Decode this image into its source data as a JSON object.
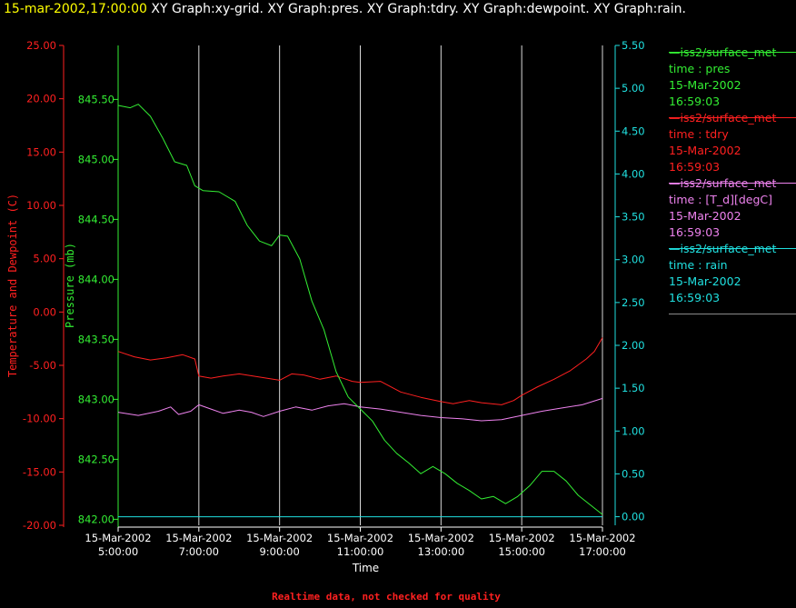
{
  "header": {
    "timestamp": "15-mar-2002,17:00:00",
    "title": " XY Graph:xy-grid.  XY Graph:pres.  XY Graph:tdry.  XY Graph:dewpoint.  XY Graph:rain."
  },
  "colors": {
    "background": "#000000",
    "timestamp": "#ffff00",
    "title": "#ffffff",
    "temperature": "#ff2020",
    "pressure": "#33ee33",
    "dewpoint": "#ee82ee",
    "rain": "#20e0e0",
    "grid": "#ffffff",
    "footer": "#ff2020"
  },
  "chart_data": {
    "type": "line",
    "x_axis": {
      "label": "Time",
      "range": [
        5,
        17
      ],
      "ticks": [
        5,
        7,
        9,
        11,
        13,
        15,
        17
      ],
      "tick_labels": [
        [
          "15-Mar-2002",
          "5:00:00"
        ],
        [
          "15-Mar-2002",
          "7:00:00"
        ],
        [
          "15-Mar-2002",
          "9:00:00"
        ],
        [
          "15-Mar-2002",
          "11:00:00"
        ],
        [
          "15-Mar-2002",
          "13:00:00"
        ],
        [
          "15-Mar-2002",
          "15:00:00"
        ],
        [
          "15-Mar-2002",
          "17:00:00"
        ]
      ]
    },
    "left_axis": {
      "label": "Temperature and Dewpoint (C)",
      "range": [
        -20,
        25
      ],
      "ticks": [
        "25.00",
        "20.00",
        "15.00",
        "10.00",
        "5.00",
        "0.00",
        "-5.00",
        "-10.00",
        "-15.00",
        "-20.00"
      ]
    },
    "pressure_axis": {
      "label": "Pressure (mb)",
      "range": [
        841.95,
        845.95
      ],
      "ticks": [
        "845.50",
        "845.00",
        "844.50",
        "844.00",
        "843.50",
        "843.00",
        "842.50",
        "842.00"
      ]
    },
    "right_axis": {
      "label": "",
      "range": [
        -0.1,
        5.5
      ],
      "ticks": [
        "5.50",
        "5.00",
        "4.50",
        "4.00",
        "3.50",
        "3.00",
        "2.50",
        "2.00",
        "1.50",
        "1.00",
        "0.50",
        "0.00"
      ]
    },
    "grid": "vertical lines at each x tick",
    "series": [
      {
        "name": "pres",
        "axis": "pressure",
        "x": [
          5.0,
          5.3,
          5.5,
          5.8,
          6.1,
          6.4,
          6.7,
          6.9,
          7.1,
          7.5,
          7.9,
          8.2,
          8.5,
          8.8,
          9.0,
          9.2,
          9.5,
          9.8,
          10.1,
          10.4,
          10.7,
          11.0,
          11.3,
          11.6,
          11.9,
          12.2,
          12.5,
          12.8,
          13.1,
          13.4,
          13.7,
          14.0,
          14.3,
          14.6,
          14.9,
          15.2,
          15.5,
          15.8,
          16.1,
          16.4,
          16.7,
          17.0
        ],
        "y": [
          845.45,
          845.43,
          845.46,
          845.36,
          845.18,
          844.98,
          844.95,
          844.78,
          844.74,
          844.73,
          844.65,
          844.45,
          844.32,
          844.28,
          844.37,
          844.36,
          844.17,
          843.82,
          843.58,
          843.23,
          843.02,
          842.92,
          842.82,
          842.66,
          842.55,
          842.47,
          842.38,
          842.44,
          842.38,
          842.3,
          842.24,
          842.17,
          842.19,
          842.13,
          842.19,
          842.28,
          842.4,
          842.4,
          842.32,
          842.2,
          842.12,
          842.04
        ]
      },
      {
        "name": "tdry",
        "axis": "left",
        "x": [
          5.0,
          5.4,
          5.8,
          6.2,
          6.6,
          6.9,
          7.0,
          7.3,
          7.6,
          8.0,
          8.5,
          9.0,
          9.3,
          9.6,
          10.0,
          10.4,
          10.8,
          11.0,
          11.5,
          12.0,
          12.5,
          13.0,
          13.3,
          13.7,
          14.0,
          14.5,
          14.8,
          15.0,
          15.4,
          15.8,
          16.2,
          16.6,
          16.8,
          17.0
        ],
        "y": [
          -3.7,
          -4.2,
          -4.5,
          -4.3,
          -4.0,
          -4.4,
          -6.0,
          -6.2,
          -6.0,
          -5.8,
          -6.1,
          -6.4,
          -5.8,
          -5.9,
          -6.3,
          -6.0,
          -6.5,
          -6.6,
          -6.5,
          -7.5,
          -8.0,
          -8.4,
          -8.6,
          -8.3,
          -8.5,
          -8.7,
          -8.3,
          -7.8,
          -7.0,
          -6.3,
          -5.5,
          -4.4,
          -3.7,
          -2.4
        ]
      },
      {
        "name": "dewpoint",
        "axis": "left",
        "x": [
          5.0,
          5.5,
          6.0,
          6.3,
          6.5,
          6.8,
          7.0,
          7.3,
          7.6,
          8.0,
          8.3,
          8.6,
          9.0,
          9.4,
          9.8,
          10.2,
          10.6,
          11.0,
          11.5,
          12.0,
          12.5,
          13.0,
          13.5,
          14.0,
          14.5,
          15.0,
          15.5,
          16.0,
          16.5,
          17.0
        ],
        "y": [
          -9.4,
          -9.7,
          -9.3,
          -8.9,
          -9.6,
          -9.3,
          -8.7,
          -9.1,
          -9.5,
          -9.2,
          -9.4,
          -9.8,
          -9.3,
          -8.9,
          -9.2,
          -8.8,
          -8.6,
          -8.9,
          -9.1,
          -9.4,
          -9.7,
          -9.9,
          -10.0,
          -10.2,
          -10.1,
          -9.7,
          -9.3,
          -9.0,
          -8.7,
          -8.1
        ]
      },
      {
        "name": "rain",
        "axis": "right",
        "x": [
          5.0,
          17.0
        ],
        "y": [
          0.0,
          0.0
        ]
      }
    ]
  },
  "legend": [
    {
      "source": "iss2/surface_met",
      "var": "time : pres",
      "date": "15-Mar-2002",
      "time": "16:59:03",
      "color": "#33ee33"
    },
    {
      "source": "iss2/surface_met",
      "var": "time : tdry",
      "date": "15-Mar-2002",
      "time": "16:59:03",
      "color": "#ff2020"
    },
    {
      "source": "iss2/surface_met",
      "var": "time : [T_d][degC]",
      "date": "15-Mar-2002",
      "time": "16:59:03",
      "color": "#ee82ee"
    },
    {
      "source": "iss2/surface_met",
      "var": "time : rain",
      "date": "15-Mar-2002",
      "time": "16:59:03",
      "color": "#20e0e0"
    }
  ],
  "footer": "Realtime data, not checked for quality"
}
